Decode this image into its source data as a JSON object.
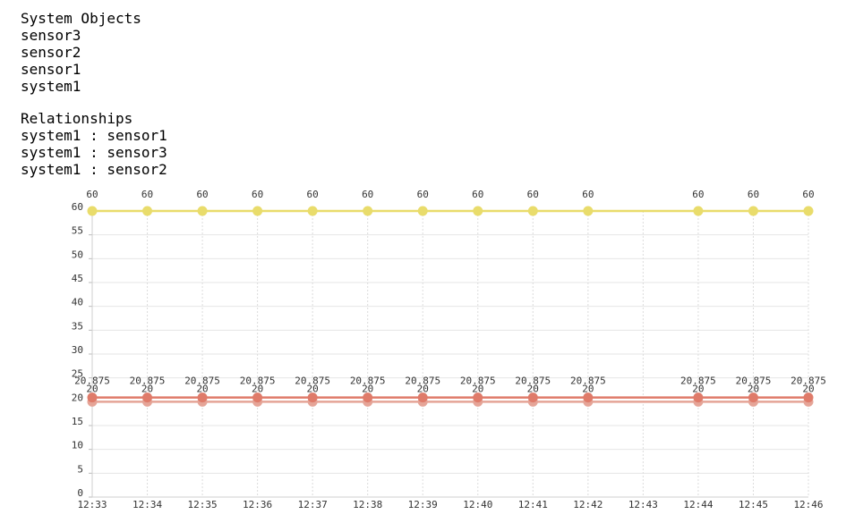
{
  "objects": {
    "title": "System Objects",
    "items": [
      "sensor3",
      "sensor2",
      "sensor1",
      "system1"
    ]
  },
  "relationships": {
    "title": "Relationships",
    "items": [
      "system1 : sensor1",
      "system1 : sensor3",
      "system1 : sensor2"
    ]
  },
  "chart_data": {
    "type": "line",
    "categories": [
      "12:33",
      "12:34",
      "12:35",
      "12:36",
      "12:37",
      "12:38",
      "12:39",
      "12:40",
      "12:41",
      "12:42",
      "12:43",
      "12:44",
      "12:45",
      "12:46"
    ],
    "ylim": [
      0,
      60
    ],
    "yticks": [
      0,
      5,
      10,
      15,
      20,
      25,
      30,
      35,
      40,
      45,
      50,
      55,
      60
    ],
    "grid": true,
    "series": [
      {
        "color": "#e9dc6b",
        "values": [
          60,
          60,
          60,
          60,
          60,
          60,
          60,
          60,
          60,
          60,
          null,
          60,
          60,
          60
        ],
        "labels": [
          "60",
          "60",
          "60",
          "60",
          "60",
          "60",
          "60",
          "60",
          "60",
          "60",
          null,
          "60",
          "60",
          "60"
        ]
      },
      {
        "color": "#df7b6a",
        "values": [
          20.875,
          20.875,
          20.875,
          20.875,
          20.875,
          20.875,
          20.875,
          20.875,
          20.875,
          20.875,
          null,
          20.875,
          20.875,
          20.875
        ],
        "labels": [
          "20.875",
          "20.875",
          "20.875",
          "20.875",
          "20.875",
          "20.875",
          "20.875",
          "20.875",
          "20.875",
          "20.875",
          null,
          "20.875",
          "20.875",
          "20.875"
        ]
      },
      {
        "color": "#e5a497",
        "values": [
          20,
          20,
          20,
          20,
          20,
          20,
          20,
          20,
          20,
          20,
          null,
          20,
          20,
          20
        ],
        "labels": [
          "20",
          "20",
          "20",
          "20",
          "20",
          "20",
          "20",
          "20",
          "20",
          "20",
          null,
          "20",
          "20",
          "20"
        ]
      }
    ]
  }
}
